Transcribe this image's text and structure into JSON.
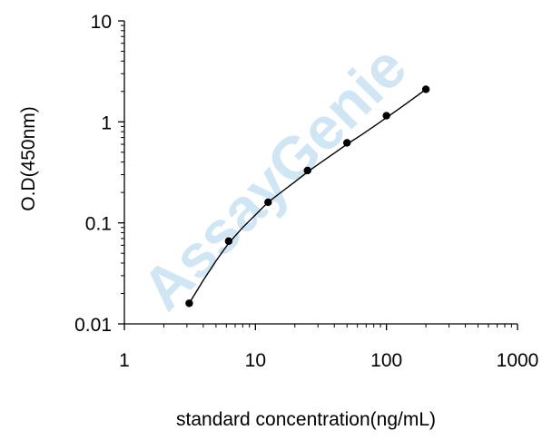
{
  "chart_data": {
    "type": "scatter",
    "x_scale": "log",
    "y_scale": "log",
    "xlim": [
      1,
      1000
    ],
    "ylim": [
      0.01,
      10
    ],
    "x_ticks": [
      "1",
      "10",
      "100",
      "1000"
    ],
    "y_ticks": [
      "0.01",
      "0.1",
      "1",
      "10"
    ],
    "x_tick_values": [
      1,
      10,
      100,
      1000
    ],
    "y_tick_values": [
      0.01,
      0.1,
      1,
      10
    ],
    "xlabel": "standard concentration(ng/mL)",
    "ylabel": "O.D(450nm)",
    "grid": false,
    "points": {
      "x": [
        3.125,
        6.25,
        12.5,
        25,
        50,
        100,
        200
      ],
      "y": [
        0.016,
        0.066,
        0.16,
        0.33,
        0.62,
        1.15,
        2.1
      ]
    },
    "fit_curve": {
      "x": [
        3.125,
        4,
        5,
        6.25,
        8,
        10,
        12.5,
        16,
        20,
        25,
        32,
        40,
        50,
        64,
        80,
        100,
        128,
        160,
        200
      ],
      "y": [
        0.016,
        0.027,
        0.042,
        0.063,
        0.09,
        0.12,
        0.16,
        0.205,
        0.255,
        0.32,
        0.4,
        0.49,
        0.6,
        0.74,
        0.9,
        1.1,
        1.38,
        1.7,
        2.1
      ]
    },
    "colors": {
      "points": "#000000",
      "curve": "#000000",
      "axis": "#000000",
      "watermark": "#5aa6dc"
    },
    "watermark": "AssayGenie"
  }
}
